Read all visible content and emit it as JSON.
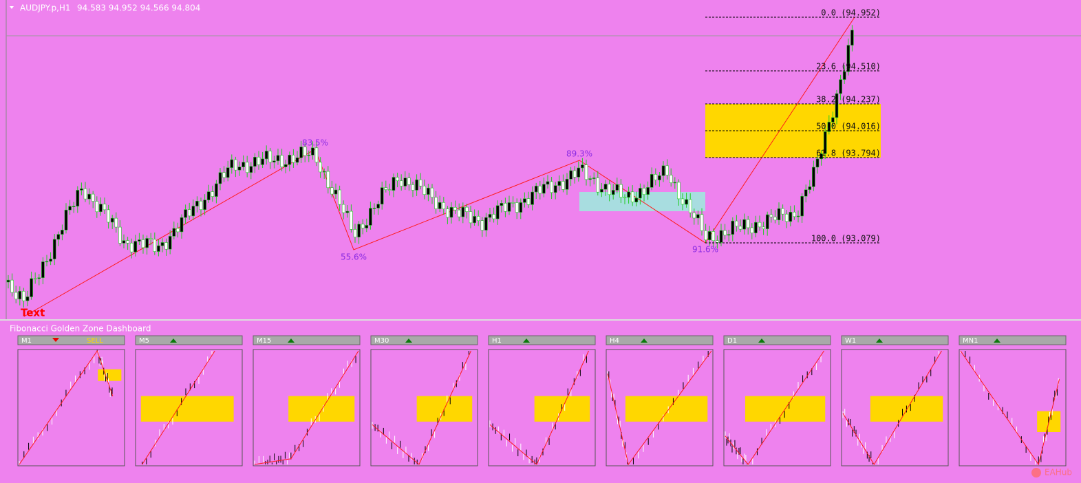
{
  "header": {
    "symbol": "AUDJPY.p,H1",
    "ohlc": "94.583 94.952 94.566 94.804"
  },
  "chart": {
    "fib_levels": [
      "0.0 (94.952)",
      "23.6 (94.510)",
      "38.2 (94.237)",
      "50.0 (94.016)",
      "61.8 (93.794)",
      "100.0 (93.079)"
    ],
    "swing_labels": [
      "83.5%",
      "55.6%",
      "89.3%",
      "91.6%"
    ],
    "marker_text": "Text"
  },
  "dashboard": {
    "title": "Fibonacci Golden Zone Dashboard",
    "panels": [
      {
        "name": "M1",
        "trend": "down",
        "signal": "SELL"
      },
      {
        "name": "M5",
        "trend": "up"
      },
      {
        "name": "M15",
        "trend": "up"
      },
      {
        "name": "M30",
        "trend": "up"
      },
      {
        "name": "H1",
        "trend": "up"
      },
      {
        "name": "H4",
        "trend": "up"
      },
      {
        "name": "D1",
        "trend": "up"
      },
      {
        "name": "W1",
        "trend": "up"
      },
      {
        "name": "MN1",
        "trend": "up"
      }
    ]
  },
  "watermark": "EAHub"
}
